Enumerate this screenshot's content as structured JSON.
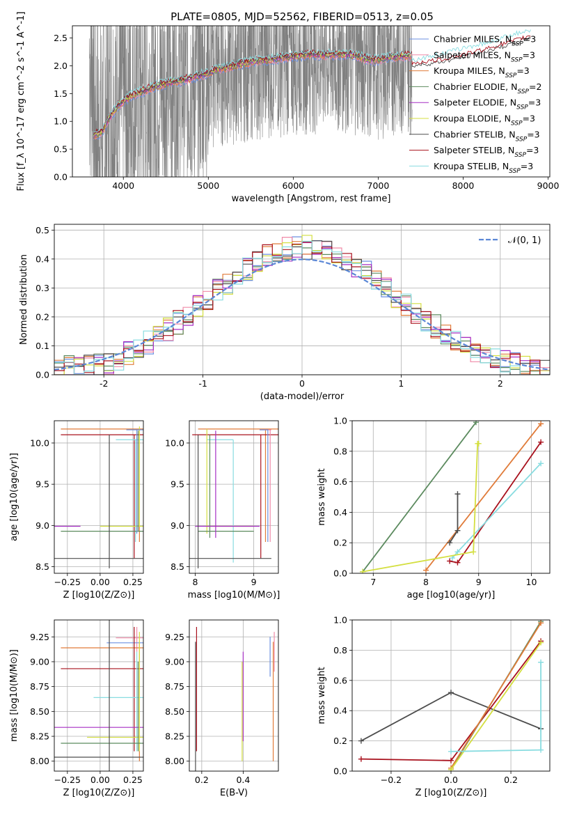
{
  "figure": {
    "title": "PLATE=0805, MJD=52562, FIBERID=0513, z=0.05"
  },
  "colors": {
    "Chabrier MILES": "#6b8fe0",
    "Salpeter MILES": "#f08aa8",
    "Kroupa MILES": "#e07b39",
    "Chabrier ELODIE": "#5b8a5e",
    "Salpeter ELODIE": "#a62ec4",
    "Kroupa ELODIE": "#d4df40",
    "Chabrier STELIB": "#4d4d4d",
    "Salpeter STELIB": "#a8101c",
    "Kroupa STELIB": "#88dce0",
    "data": "#808080",
    "normal": "#5b87d6",
    "grid": "#b0b0b0"
  },
  "chart_data": [
    {
      "id": "spectrum",
      "type": "line",
      "title": "PLATE=0805, MJD=52562, FIBERID=0513, z=0.05",
      "xlabel": "wavelength [Angstrom, rest frame]",
      "ylabel": "Flux [f_λ 10^-17 erg cm^-2 s^-1 A^-1]",
      "xlim": [
        3400,
        9020
      ],
      "ylim": [
        0,
        2.72
      ],
      "xticks": [
        4000,
        5000,
        6000,
        7000,
        8000,
        9000
      ],
      "yticks": [
        0.0,
        0.5,
        1.0,
        1.5,
        2.0,
        2.5
      ],
      "grid": false,
      "legend_position": "top-right",
      "legend": [
        {
          "key": "Chabrier MILES",
          "label": "Chabrier MILES, N_SSP=3"
        },
        {
          "key": "Salpeter MILES",
          "label": "Salpeter MILES, N_SSP=3"
        },
        {
          "key": "Kroupa MILES",
          "label": "Kroupa MILES, N_SSP=3"
        },
        {
          "key": "Chabrier ELODIE",
          "label": "Chabrier ELODIE, N_SSP=2"
        },
        {
          "key": "Salpeter ELODIE",
          "label": "Salpeter ELODIE, N_SSP=3"
        },
        {
          "key": "Kroupa ELODIE",
          "label": "Kroupa ELODIE, N_SSP=3"
        },
        {
          "key": "Chabrier STELIB",
          "label": "Chabrier STELIB, N_SSP=3"
        },
        {
          "key": "Salpeter STELIB",
          "label": "Salpeter STELIB, N_SSP=3"
        },
        {
          "key": "Kroupa STELIB",
          "label": "Kroupa STELIB, N_SSP=3"
        }
      ],
      "data_range": [
        3600,
        7400
      ],
      "model_curve": {
        "x": [
          3650,
          3750,
          3850,
          3950,
          4050,
          4150,
          4250,
          4350,
          4450,
          4550,
          4650,
          4750,
          4850,
          4950,
          5050,
          5150,
          5250,
          5350,
          5450,
          5550,
          5650,
          5750,
          5850,
          5950,
          6050,
          6150,
          6250,
          6350,
          6450,
          6550,
          6650,
          6750,
          6850,
          6950,
          7050,
          7150,
          7250,
          7350
        ],
        "y": [
          0.75,
          0.82,
          1.1,
          1.3,
          1.42,
          1.5,
          1.55,
          1.62,
          1.66,
          1.7,
          1.72,
          1.76,
          1.8,
          1.85,
          1.9,
          1.95,
          1.98,
          2.02,
          2.05,
          2.08,
          2.1,
          2.12,
          2.14,
          2.16,
          2.18,
          2.2,
          2.2,
          2.19,
          2.2,
          2.21,
          2.2,
          2.18,
          2.12,
          2.1,
          2.12,
          2.15,
          2.17,
          2.18
        ]
      },
      "model_extensions": [
        {
          "key": "Kroupa STELIB",
          "x": [
            7400,
            7700,
            8000,
            8300,
            8600,
            8800
          ],
          "y": [
            2.1,
            2.2,
            2.32,
            2.42,
            2.58,
            2.62
          ]
        },
        {
          "key": "Salpeter STELIB",
          "x": [
            7400,
            7700,
            8000,
            8300,
            8600,
            8800
          ],
          "y": [
            2.05,
            2.1,
            2.2,
            2.32,
            2.45,
            2.55
          ]
        },
        {
          "key": "Chabrier STELIB",
          "x": [
            7400,
            7700,
            8000,
            8300,
            8600,
            8800
          ],
          "y": [
            2.0,
            2.06,
            2.15,
            2.28,
            2.4,
            2.52
          ]
        }
      ]
    },
    {
      "id": "residuals",
      "type": "step",
      "xlabel": "(data-model)/error",
      "ylabel": "Normed distribution",
      "xlim": [
        -2.5,
        2.5
      ],
      "ylim": [
        0,
        0.52
      ],
      "xticks": [
        -2,
        -1,
        0,
        1,
        2
      ],
      "yticks": [
        0.0,
        0.1,
        0.2,
        0.3,
        0.4,
        0.5
      ],
      "grid": true,
      "legend": [
        {
          "key": "normal",
          "label": "𝒩(0, 1)"
        }
      ],
      "legend_position": "top-right"
    },
    {
      "id": "age-vs-z",
      "type": "errorbar",
      "xlabel": "Z [log10(Z/Z⊙)]",
      "ylabel": "age [log10(age/yr)]",
      "xlim": [
        -0.35,
        0.33
      ],
      "ylim": [
        8.42,
        10.27
      ],
      "xticks": [
        -0.25,
        0.0,
        0.25
      ],
      "xticklabels": [
        "−0.25",
        "0.00",
        "0.25"
      ],
      "yticks": [
        8.5,
        9.0,
        9.5,
        10.0
      ],
      "yticklabels": [
        "8.5",
        "9.0",
        "9.5",
        "10.0"
      ],
      "grid": true,
      "points": [
        {
          "key": "Kroupa MILES",
          "x": 0.3,
          "y": 10.17,
          "xerr": [
            0.33,
            0.02
          ],
          "yerr": [
            1.3,
            0.0
          ]
        },
        {
          "key": "Salpeter STELIB",
          "x": 0.26,
          "y": 10.1,
          "xerr": [
            0.31,
            0.04
          ],
          "yerr": [
            1.3,
            0.0
          ]
        },
        {
          "key": "Kroupa STELIB",
          "x": 0.25,
          "y": 10.04,
          "xerr": [
            0.12,
            0.05
          ],
          "yerr": [
            1.4,
            0.0
          ]
        },
        {
          "key": "Kroupa ELODIE",
          "x": 0.3,
          "y": 8.99,
          "xerr": [
            0.32,
            0.02
          ],
          "yerr": [
            0.0,
            1.2
          ]
        },
        {
          "key": "Chabrier ELODIE",
          "x": 0.3,
          "y": 8.93,
          "xerr": [
            0.32,
            0.02
          ],
          "yerr": [
            0.0,
            1.2
          ]
        },
        {
          "key": "Salpeter ELODIE",
          "x": -0.15,
          "y": 8.99,
          "xerr": [
            0.18,
            0.0
          ],
          "yerr": [
            0,
            0
          ]
        },
        {
          "key": "Chabrier STELIB",
          "x": 0.07,
          "y": 8.6,
          "xerr": [
            0.4,
            0.25
          ],
          "yerr": [
            0.12,
            1.5
          ]
        }
      ]
    },
    {
      "id": "age-vs-mass",
      "type": "errorbar",
      "xlabel": "mass [log10(M/M⊙)]",
      "ylabel": "",
      "xlim": [
        7.9,
        9.42
      ],
      "ylim": [
        8.42,
        10.27
      ],
      "xticks": [
        8,
        9
      ],
      "xticklabels": [
        "8",
        "9"
      ],
      "yticks": [
        8.5,
        9.0,
        9.5,
        10.0
      ],
      "yticklabels": [
        "8.5",
        "9.0",
        "9.5",
        "10.0"
      ],
      "grid": true
    },
    {
      "id": "weight-vs-age",
      "type": "line",
      "xlabel": "age [log10(age/yr)]",
      "ylabel": "mass weight",
      "xlim": [
        6.6,
        10.35
      ],
      "ylim": [
        0,
        1
      ],
      "xticks": [
        7,
        8,
        9,
        10
      ],
      "xticklabels": [
        "7",
        "8",
        "9",
        "10"
      ],
      "yticks": [
        0.0,
        0.2,
        0.4,
        0.6,
        0.8,
        1.0
      ],
      "yticklabels": [
        "0.0",
        "0.2",
        "0.4",
        "0.6",
        "0.8",
        "1.0"
      ],
      "grid": true,
      "series": [
        {
          "key": "Chabrier ELODIE",
          "x": [
            6.8,
            8.95
          ],
          "y": [
            0.01,
            0.99
          ]
        },
        {
          "key": "Kroupa MILES",
          "x": [
            8.0,
            10.18
          ],
          "y": [
            0.02,
            0.98
          ]
        },
        {
          "key": "Salpeter STELIB",
          "x": [
            8.45,
            8.6,
            10.18
          ],
          "y": [
            0.08,
            0.07,
            0.86
          ]
        },
        {
          "key": "Kroupa STELIB",
          "x": [
            8.5,
            8.6,
            10.18
          ],
          "y": [
            0.1,
            0.14,
            0.72
          ]
        },
        {
          "key": "Kroupa ELODIE",
          "x": [
            6.8,
            8.9,
            8.98,
            9.0
          ],
          "y": [
            0.01,
            0.14,
            0.85,
            0.85
          ]
        },
        {
          "key": "Chabrier STELIB",
          "x": [
            8.45,
            8.6,
            8.6
          ],
          "y": [
            0.2,
            0.28,
            0.52
          ]
        }
      ]
    },
    {
      "id": "mass-vs-z",
      "type": "errorbar",
      "xlabel": "Z [log10(Z/Z⊙)]",
      "ylabel": "mass [log10(M/M⊙)]",
      "xlim": [
        -0.35,
        0.33
      ],
      "ylim": [
        7.9,
        9.42
      ],
      "xticks": [
        -0.25,
        0.0,
        0.25
      ],
      "xticklabels": [
        "−0.25",
        "0.00",
        "0.25"
      ],
      "yticks": [
        8.0,
        8.25,
        8.5,
        8.75,
        9.0,
        9.25
      ],
      "yticklabels": [
        "8.00",
        "8.25",
        "8.50",
        "8.75",
        "9.00",
        "9.25"
      ],
      "grid": true
    },
    {
      "id": "mass-vs-ebv",
      "type": "errorbar",
      "xlabel": "E(B-V)",
      "ylabel": "",
      "xlim": [
        0.14,
        0.57
      ],
      "ylim": [
        7.9,
        9.42
      ],
      "xticks": [
        0.2,
        0.4
      ],
      "xticklabels": [
        "0.2",
        "0.4"
      ],
      "yticks": [
        8.0,
        8.25,
        8.5,
        8.75,
        9.0,
        9.25
      ],
      "yticklabels": [
        "8.00",
        "8.25",
        "8.50",
        "8.75",
        "9.00",
        "9.25"
      ],
      "grid": true
    },
    {
      "id": "weight-vs-z",
      "type": "line",
      "xlabel": "Z [log10(Z/Z⊙)]",
      "ylabel": "mass weight",
      "xlim": [
        -0.33,
        0.33
      ],
      "ylim": [
        0,
        1
      ],
      "xticks": [
        -0.2,
        0.0,
        0.2
      ],
      "xticklabels": [
        "−0.2",
        "0.0",
        "0.2"
      ],
      "yticks": [
        0.0,
        0.2,
        0.4,
        0.6,
        0.8,
        1.0
      ],
      "yticklabels": [
        "0.0",
        "0.2",
        "0.4",
        "0.6",
        "0.8",
        "1.0"
      ],
      "grid": true,
      "series": [
        {
          "key": "Chabrier STELIB",
          "x": [
            -0.3,
            0.0,
            0.3
          ],
          "y": [
            0.2,
            0.52,
            0.28
          ]
        },
        {
          "key": "Salpeter STELIB",
          "x": [
            -0.3,
            0.0,
            0.3
          ],
          "y": [
            0.08,
            0.07,
            0.86
          ]
        },
        {
          "key": "Chabrier ELODIE",
          "x": [
            0.0,
            0.3
          ],
          "y": [
            0.01,
            0.99
          ]
        },
        {
          "key": "Kroupa MILES",
          "x": [
            0.0,
            0.3
          ],
          "y": [
            0.02,
            0.98
          ]
        },
        {
          "key": "Kroupa ELODIE",
          "x": [
            0.0,
            0.3
          ],
          "y": [
            0.01,
            0.85
          ]
        },
        {
          "key": "Kroupa STELIB",
          "x": [
            0.0,
            0.3,
            0.3
          ],
          "y": [
            0.13,
            0.14,
            0.72
          ]
        }
      ]
    }
  ]
}
